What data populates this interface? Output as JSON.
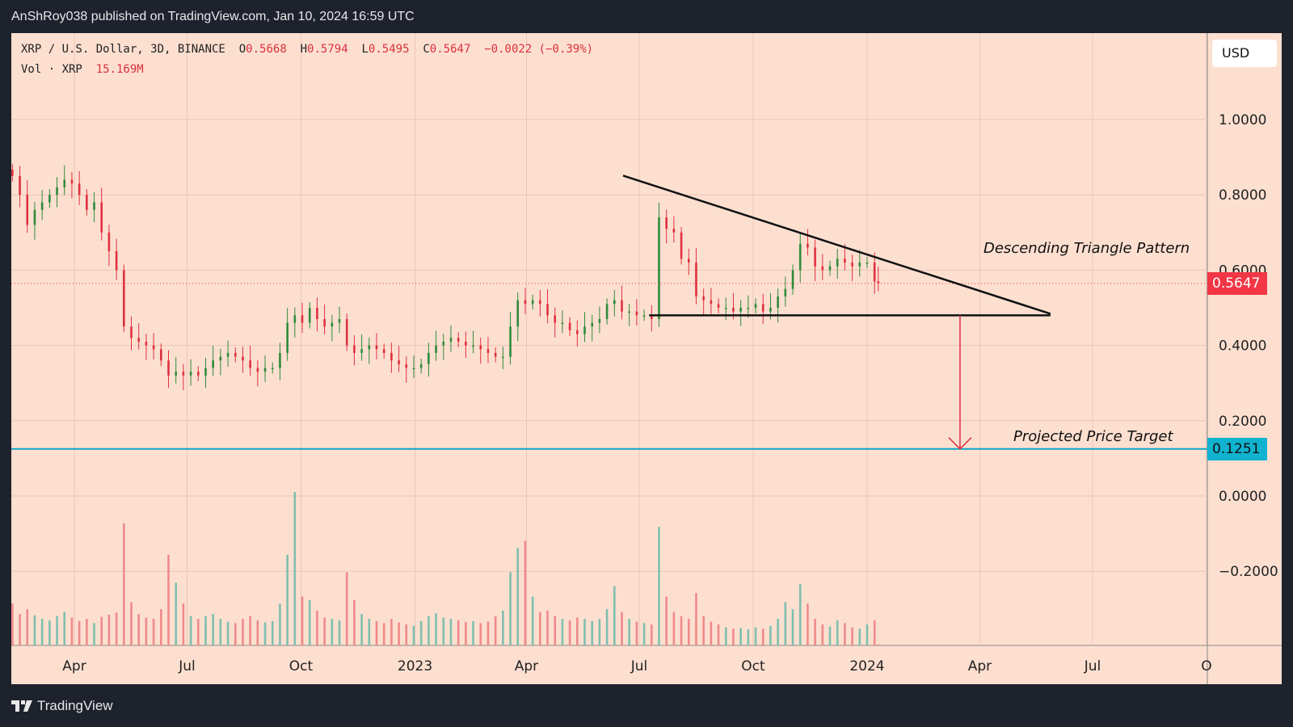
{
  "header": {
    "published": "AnShRoy038 published on TradingView.com, Jan 10, 2024 16:59 UTC"
  },
  "legend": {
    "symbol": "XRP / U.S. Dollar, 3D, BINANCE",
    "o_label": "O",
    "o": "0.5668",
    "h_label": "H",
    "h": "0.5794",
    "l_label": "L",
    "l": "0.5495",
    "c_label": "C",
    "c": "0.5647",
    "change": "−0.0022 (−0.39%)",
    "vol_label": "Vol · XRP",
    "vol": "15.169M"
  },
  "axis": {
    "currency": "USD"
  },
  "annotations": {
    "pattern": "Descending Triangle Pattern",
    "target": "Projected Price Target",
    "last_price": "0.5647",
    "target_price": "0.1251"
  },
  "footer": {
    "logo": "TradingView"
  },
  "colors": {
    "background": "#fddfd0",
    "up": "#2e8b3a",
    "down": "#e0303f",
    "vol_up": "#7fbfae",
    "vol_down": "#ef8a8a",
    "target_line": "#10a6c4",
    "frame": "#1e222d"
  },
  "chart_data": {
    "type": "candlestick",
    "title": "XRP / U.S. Dollar, 3D, BINANCE",
    "ylim": [
      -0.4,
      1.1
    ],
    "y_ticks": [
      "1.0000",
      "0.8000",
      "0.6000",
      "0.4000",
      "0.2000",
      "0.0000",
      "-0.2000"
    ],
    "x_ticks": [
      {
        "label": "Apr",
        "date": "2022-04-01"
      },
      {
        "label": "Jul",
        "date": "2022-07-01"
      },
      {
        "label": "Oct",
        "date": "2022-10-01"
      },
      {
        "label": "2023",
        "date": "2023-01-01"
      },
      {
        "label": "Apr",
        "date": "2023-04-01"
      },
      {
        "label": "Jul",
        "date": "2023-07-01"
      },
      {
        "label": "Oct",
        "date": "2023-10-01"
      },
      {
        "label": "2024",
        "date": "2024-01-01"
      },
      {
        "label": "Apr",
        "date": "2024-04-01"
      },
      {
        "label": "Jul",
        "date": "2024-07-01"
      },
      {
        "label": "O",
        "date": "2024-10-01"
      }
    ],
    "grid": true,
    "series": [
      [
        "2022-02-10",
        0.85,
        600
      ],
      [
        "2022-02-16",
        0.8,
        450
      ],
      [
        "2022-02-22",
        0.72,
        520
      ],
      [
        "2022-02-28",
        0.76,
        430
      ],
      [
        "2022-03-06",
        0.78,
        380
      ],
      [
        "2022-03-12",
        0.8,
        360
      ],
      [
        "2022-03-18",
        0.82,
        420
      ],
      [
        "2022-03-24",
        0.84,
        480
      ],
      [
        "2022-03-30",
        0.83,
        400
      ],
      [
        "2022-04-05",
        0.8,
        350
      ],
      [
        "2022-04-11",
        0.76,
        380
      ],
      [
        "2022-04-17",
        0.78,
        320
      ],
      [
        "2022-04-23",
        0.7,
        410
      ],
      [
        "2022-04-29",
        0.65,
        440
      ],
      [
        "2022-05-05",
        0.6,
        470
      ],
      [
        "2022-05-11",
        0.45,
        1750
      ],
      [
        "2022-05-17",
        0.42,
        620
      ],
      [
        "2022-05-23",
        0.41,
        450
      ],
      [
        "2022-05-29",
        0.4,
        400
      ],
      [
        "2022-06-04",
        0.39,
        380
      ],
      [
        "2022-06-10",
        0.36,
        520
      ],
      [
        "2022-06-16",
        0.32,
        1300
      ],
      [
        "2022-06-22",
        0.33,
        900
      ],
      [
        "2022-06-28",
        0.32,
        600
      ],
      [
        "2022-07-04",
        0.33,
        420
      ],
      [
        "2022-07-10",
        0.32,
        380
      ],
      [
        "2022-07-16",
        0.34,
        420
      ],
      [
        "2022-07-22",
        0.36,
        450
      ],
      [
        "2022-07-28",
        0.37,
        380
      ],
      [
        "2022-08-03",
        0.38,
        340
      ],
      [
        "2022-08-09",
        0.37,
        320
      ],
      [
        "2022-08-15",
        0.36,
        380
      ],
      [
        "2022-08-21",
        0.34,
        420
      ],
      [
        "2022-08-27",
        0.33,
        360
      ],
      [
        "2022-09-02",
        0.34,
        330
      ],
      [
        "2022-09-08",
        0.34,
        350
      ],
      [
        "2022-09-14",
        0.38,
        600
      ],
      [
        "2022-09-20",
        0.46,
        1300
      ],
      [
        "2022-09-26",
        0.48,
        2200
      ],
      [
        "2022-10-02",
        0.46,
        700
      ],
      [
        "2022-10-08",
        0.5,
        650
      ],
      [
        "2022-10-14",
        0.47,
        500
      ],
      [
        "2022-10-20",
        0.45,
        400
      ],
      [
        "2022-10-26",
        0.46,
        380
      ],
      [
        "2022-11-01",
        0.47,
        360
      ],
      [
        "2022-11-07",
        0.4,
        1050
      ],
      [
        "2022-11-13",
        0.38,
        650
      ],
      [
        "2022-11-19",
        0.39,
        450
      ],
      [
        "2022-11-25",
        0.4,
        380
      ],
      [
        "2022-12-01",
        0.39,
        350
      ],
      [
        "2022-12-07",
        0.38,
        320
      ],
      [
        "2022-12-13",
        0.36,
        380
      ],
      [
        "2022-12-19",
        0.35,
        330
      ],
      [
        "2022-12-25",
        0.34,
        300
      ],
      [
        "2022-12-31",
        0.34,
        280
      ],
      [
        "2023-01-06",
        0.35,
        350
      ],
      [
        "2023-01-12",
        0.38,
        420
      ],
      [
        "2023-01-18",
        0.4,
        460
      ],
      [
        "2023-01-24",
        0.41,
        400
      ],
      [
        "2023-01-30",
        0.42,
        380
      ],
      [
        "2023-02-05",
        0.41,
        360
      ],
      [
        "2023-02-11",
        0.4,
        340
      ],
      [
        "2023-02-17",
        0.4,
        350
      ],
      [
        "2023-02-23",
        0.39,
        320
      ],
      [
        "2023-03-01",
        0.38,
        340
      ],
      [
        "2023-03-07",
        0.37,
        420
      ],
      [
        "2023-03-13",
        0.37,
        500
      ],
      [
        "2023-03-19",
        0.45,
        1050
      ],
      [
        "2023-03-25",
        0.52,
        1400
      ],
      [
        "2023-03-31",
        0.51,
        1500
      ],
      [
        "2023-04-06",
        0.52,
        700
      ],
      [
        "2023-04-12",
        0.51,
        480
      ],
      [
        "2023-04-18",
        0.48,
        500
      ],
      [
        "2023-04-24",
        0.46,
        420
      ],
      [
        "2023-04-30",
        0.46,
        380
      ],
      [
        "2023-05-06",
        0.44,
        360
      ],
      [
        "2023-05-12",
        0.43,
        400
      ],
      [
        "2023-05-18",
        0.45,
        380
      ],
      [
        "2023-05-24",
        0.46,
        350
      ],
      [
        "2023-05-30",
        0.47,
        380
      ],
      [
        "2023-06-05",
        0.51,
        520
      ],
      [
        "2023-06-11",
        0.52,
        850
      ],
      [
        "2023-06-17",
        0.49,
        480
      ],
      [
        "2023-06-23",
        0.49,
        380
      ],
      [
        "2023-06-29",
        0.48,
        340
      ],
      [
        "2023-07-05",
        0.48,
        320
      ],
      [
        "2023-07-11",
        0.47,
        300
      ],
      [
        "2023-07-17",
        0.74,
        1700
      ],
      [
        "2023-07-23",
        0.71,
        700
      ],
      [
        "2023-07-29",
        0.7,
        480
      ],
      [
        "2023-08-04",
        0.63,
        420
      ],
      [
        "2023-08-10",
        0.62,
        380
      ],
      [
        "2023-08-16",
        0.53,
        750
      ],
      [
        "2023-08-22",
        0.52,
        420
      ],
      [
        "2023-08-28",
        0.51,
        340
      ],
      [
        "2023-09-03",
        0.5,
        300
      ],
      [
        "2023-09-09",
        0.5,
        260
      ],
      [
        "2023-09-15",
        0.49,
        240
      ],
      [
        "2023-09-21",
        0.5,
        250
      ],
      [
        "2023-09-27",
        0.5,
        230
      ],
      [
        "2023-10-03",
        0.51,
        260
      ],
      [
        "2023-10-09",
        0.49,
        240
      ],
      [
        "2023-10-15",
        0.5,
        280
      ],
      [
        "2023-10-21",
        0.53,
        380
      ],
      [
        "2023-10-27",
        0.55,
        620
      ],
      [
        "2023-11-02",
        0.6,
        520
      ],
      [
        "2023-11-08",
        0.67,
        880
      ],
      [
        "2023-11-14",
        0.66,
        600
      ],
      [
        "2023-11-20",
        0.61,
        380
      ],
      [
        "2023-11-26",
        0.6,
        300
      ],
      [
        "2023-12-02",
        0.61,
        270
      ],
      [
        "2023-12-08",
        0.63,
        360
      ],
      [
        "2023-12-14",
        0.62,
        320
      ],
      [
        "2023-12-20",
        0.61,
        260
      ],
      [
        "2023-12-26",
        0.62,
        240
      ],
      [
        "2024-01-01",
        0.62,
        300
      ],
      [
        "2024-01-07",
        0.57,
        360
      ],
      [
        "2024-01-10",
        0.5647,
        15.169
      ]
    ],
    "series_columns": [
      "date",
      "close",
      "volume_millions"
    ],
    "drawings": {
      "resistance": {
        "from": [
          "2023-06-18",
          0.851
        ],
        "to": [
          "2024-05-28",
          0.484
        ]
      },
      "support": {
        "from": [
          "2023-07-09",
          0.48
        ],
        "to": [
          "2024-05-28",
          0.48
        ]
      },
      "target_arrow": {
        "date": "2024-03-16",
        "from": 0.48,
        "to": 0.1251
      },
      "target_level": 0.1251,
      "last_price": 0.5647
    }
  }
}
